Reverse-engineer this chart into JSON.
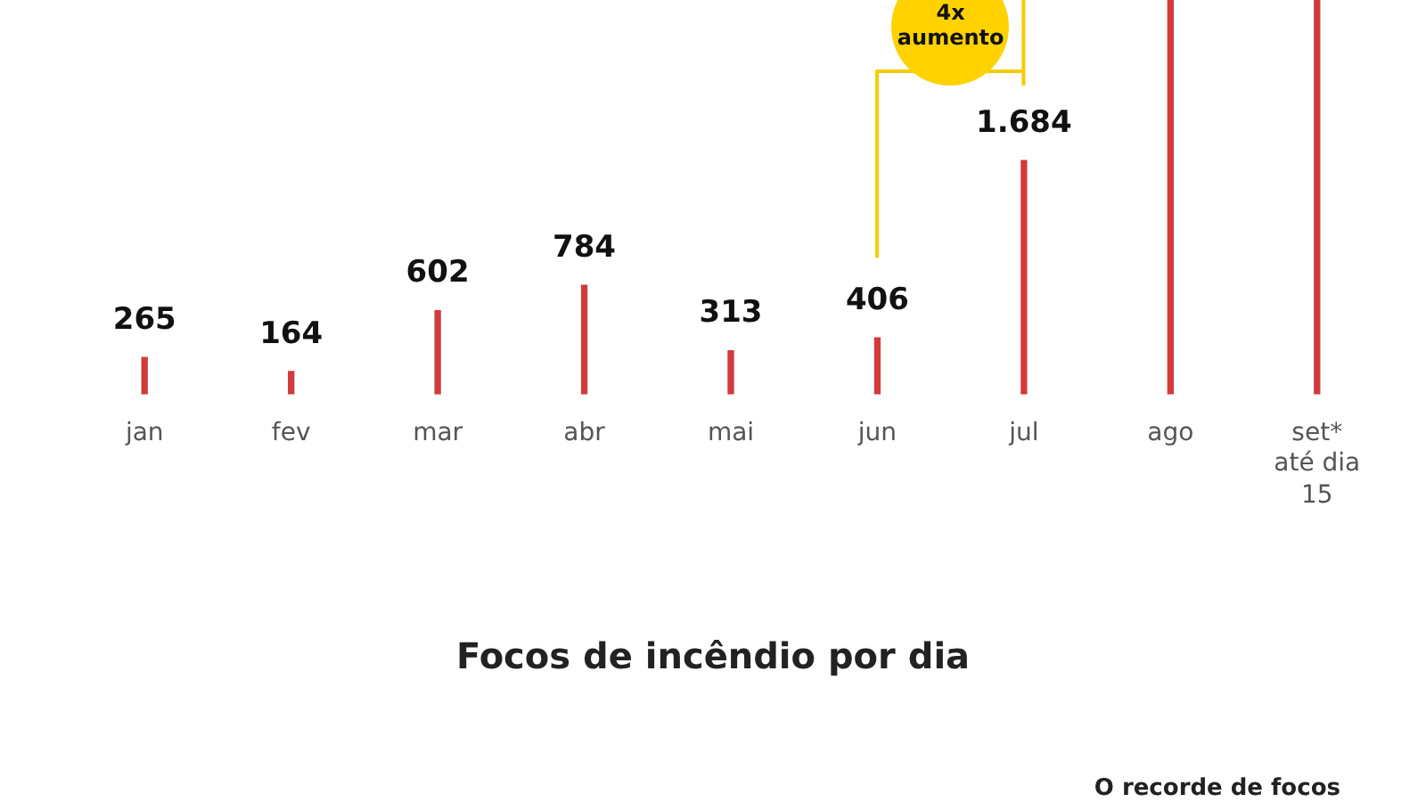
{
  "chart_data": {
    "type": "bar",
    "title": "Focos de incêndio por dia",
    "categories": [
      "jan",
      "fev",
      "mar",
      "abr",
      "mai",
      "jun",
      "jul",
      "ago",
      "set*"
    ],
    "values": [
      265,
      164,
      602,
      784,
      313,
      406,
      1684,
      2840,
      2840
    ],
    "value_labels": [
      "265",
      "164",
      "602",
      "784",
      "313",
      "406",
      "1.684",
      null,
      null
    ],
    "color": "#d13b3b",
    "ylim": [
      0,
      2840
    ],
    "tick_labels": "x",
    "annotations": [
      "4x aumento",
      "até dia 15",
      "O recorde de focos"
    ]
  }
}
